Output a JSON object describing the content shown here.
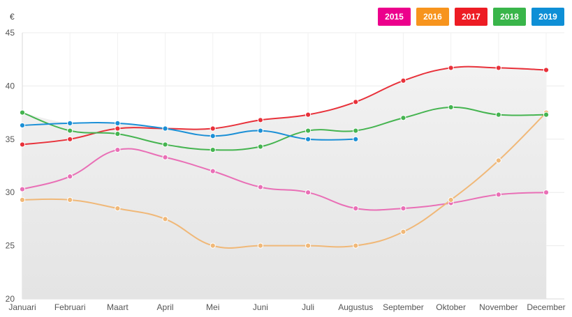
{
  "chart_data": {
    "type": "line",
    "unit_label": "€",
    "categories": [
      "Januari",
      "Februari",
      "Maart",
      "April",
      "Mei",
      "Juni",
      "Juli",
      "Augustus",
      "September",
      "Oktober",
      "November",
      "December"
    ],
    "ylim": [
      20,
      45
    ],
    "yticks": [
      20,
      25,
      30,
      35,
      40,
      45
    ],
    "grid": true,
    "legend_position": "top-right",
    "series": [
      {
        "name": "2015",
        "color": "#ec008c",
        "line_color": "#e96fb6",
        "values": [
          30.3,
          31.5,
          34.0,
          33.3,
          32.0,
          30.5,
          30.0,
          28.5,
          28.5,
          29.0,
          29.8,
          30.0
        ]
      },
      {
        "name": "2016",
        "color": "#f7941d",
        "line_color": "#f0b878",
        "values": [
          29.3,
          29.3,
          28.5,
          27.5,
          25.0,
          25.0,
          25.0,
          25.0,
          26.3,
          29.3,
          33.0,
          37.5
        ]
      },
      {
        "name": "2017",
        "color": "#ed1c24",
        "line_color": "#e8313a",
        "values": [
          34.5,
          35.0,
          36.0,
          36.0,
          36.0,
          36.8,
          37.3,
          38.5,
          40.5,
          41.7,
          41.7,
          41.5
        ]
      },
      {
        "name": "2018",
        "color": "#39b54a",
        "line_color": "#45b450",
        "values": [
          37.5,
          35.8,
          35.5,
          34.5,
          34.0,
          34.3,
          35.8,
          35.8,
          37.0,
          38.0,
          37.3,
          37.3
        ]
      },
      {
        "name": "2019",
        "color": "#0e8fd6",
        "line_color": "#1a8fd6",
        "values": [
          36.3,
          36.5,
          36.5,
          36.0,
          35.3,
          35.8,
          35.0,
          35.0,
          null,
          null,
          null,
          null
        ]
      }
    ]
  }
}
